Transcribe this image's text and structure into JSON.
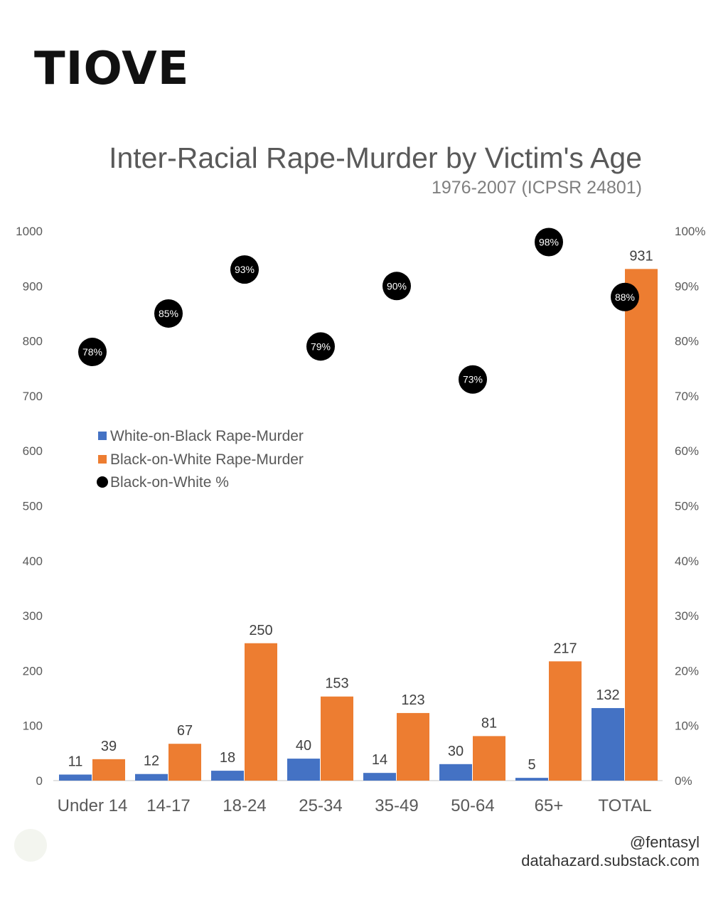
{
  "logo": "TIOVE",
  "footer": {
    "handle": "@fentasyl",
    "site": "datahazard.substack.com"
  },
  "colors": {
    "white_on_black": "#4472c4",
    "black_on_white": "#ed7d31",
    "percent_marker": "#000000",
    "title_text": "#595959",
    "axis_text": "#595959"
  },
  "chart_data": {
    "type": "bar",
    "title": "Inter-Racial Rape-Murder by Victim's Age",
    "subtitle": "1976-2007 (ICPSR 24801)",
    "categories": [
      "Under 14",
      "14-17",
      "18-24",
      "25-34",
      "35-49",
      "50-64",
      "65+",
      "TOTAL"
    ],
    "series": [
      {
        "name": "White-on-Black Rape-Murder",
        "kind": "bar",
        "axis": "left",
        "values": [
          11,
          12,
          18,
          40,
          14,
          30,
          5,
          132
        ]
      },
      {
        "name": "Black-on-White Rape-Murder",
        "kind": "bar",
        "axis": "left",
        "values": [
          39,
          67,
          250,
          153,
          123,
          81,
          217,
          931
        ]
      },
      {
        "name": "Black-on-White %",
        "kind": "scatter",
        "axis": "right",
        "values": [
          78,
          85,
          93,
          79,
          90,
          73,
          98,
          88
        ]
      }
    ],
    "ylim": [
      0,
      1000
    ],
    "y_ticks": [
      "0",
      "100",
      "200",
      "300",
      "400",
      "500",
      "600",
      "700",
      "800",
      "900",
      "1000"
    ],
    "y2lim": [
      0,
      100
    ],
    "y2_ticks": [
      "0%",
      "10%",
      "20%",
      "30%",
      "40%",
      "50%",
      "60%",
      "70%",
      "80%",
      "90%",
      "100%"
    ],
    "legend": "middle-left",
    "grid": false
  }
}
